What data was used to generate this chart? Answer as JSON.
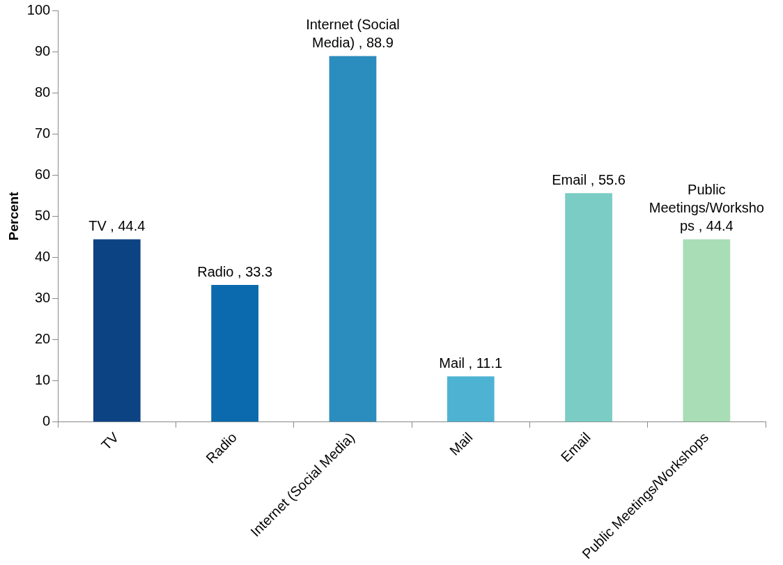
{
  "chart_data": {
    "type": "bar",
    "ylabel": "Percent",
    "categories": [
      "TV",
      "Radio",
      "Internet (Social Media)",
      "Mail",
      "Email",
      "Public Meetings/Workshops"
    ],
    "values": [
      44.4,
      33.3,
      88.9,
      11.1,
      55.6,
      44.4
    ],
    "colors": [
      "#0c4383",
      "#0a6aad",
      "#2b8cbe",
      "#4eb3d3",
      "#7bccc4",
      "#a8ddb5"
    ],
    "value_labels": [
      "TV , 44.4",
      "Radio , 33.3",
      "Internet (Social Media) , 88.9",
      "Mail , 11.1",
      "Email , 55.6",
      "Public Meetings/Workshops , 44.4"
    ],
    "ylim": [
      0,
      100
    ],
    "yticks": [
      0,
      10,
      20,
      30,
      40,
      50,
      60,
      70,
      80,
      90,
      100
    ],
    "grid": false,
    "legend": false
  }
}
